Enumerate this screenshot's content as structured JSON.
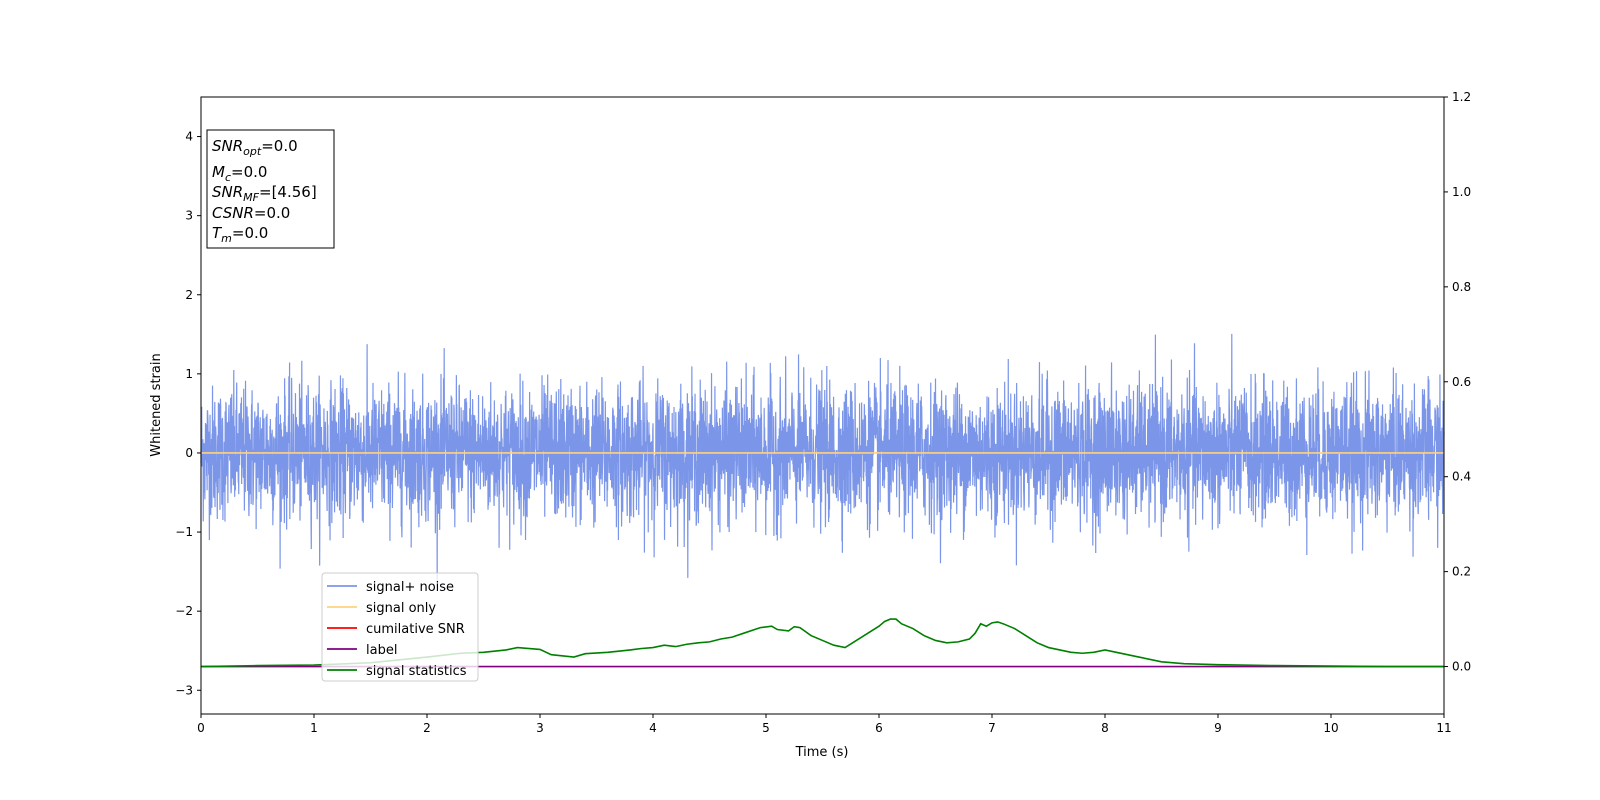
{
  "chart_data": {
    "type": "line",
    "title": "",
    "xlabel": "Time (s)",
    "ylabel": "Whitened strain",
    "y2label": "",
    "xlim": [
      0,
      11
    ],
    "ylim": [
      -3.3,
      4.5
    ],
    "y2lim": [
      -0.1,
      1.2
    ],
    "xticks": [
      "0",
      "1",
      "2",
      "3",
      "4",
      "5",
      "6",
      "7",
      "8",
      "9",
      "10",
      "11"
    ],
    "yticks": [
      "−3",
      "−2",
      "−1",
      "0",
      "1",
      "2",
      "3",
      "4"
    ],
    "y2ticks": [
      "0.0",
      "0.2",
      "0.4",
      "0.6",
      "0.8",
      "1.0",
      "1.2"
    ],
    "grid": false,
    "legend_position": "lower-left",
    "annotation": {
      "lines": [
        {
          "sym": "SNR",
          "sub": "opt",
          "val": "=0.0"
        },
        {
          "sym": "M",
          "sub": "c",
          "val": "=0.0"
        },
        {
          "sym": "SNR",
          "sub": "MF",
          "val": "=[4.56]"
        },
        {
          "sym": "CSNR",
          "sub": "",
          "val": "=0.0"
        },
        {
          "sym": "T",
          "sub": "m",
          "val": "=0.0"
        }
      ]
    },
    "series": [
      {
        "name": "signal+ noise",
        "color": "#7b96e8",
        "axis": "left",
        "kind": "noise",
        "amplitude_envelope": [
          -1.85,
          1.85
        ],
        "description_values": {
          "mean": 0.0,
          "std": 0.42
        }
      },
      {
        "name": "signal only",
        "color": "#ffd27f",
        "axis": "left",
        "x": [
          0,
          11
        ],
        "y": [
          0,
          0
        ]
      },
      {
        "name": "cumilative SNR",
        "color": "#ff0000",
        "axis": "right",
        "x": [],
        "y": []
      },
      {
        "name": "label",
        "color": "#800080",
        "axis": "right",
        "x": [
          0,
          11
        ],
        "y": [
          0,
          0
        ]
      },
      {
        "name": "signal statistics",
        "color": "#008000",
        "axis": "right",
        "x": [
          0,
          0.5,
          1.0,
          1.5,
          2.0,
          2.3,
          2.5,
          2.7,
          2.8,
          3.0,
          3.1,
          3.3,
          3.4,
          3.6,
          3.8,
          3.9,
          4.0,
          4.1,
          4.2,
          4.3,
          4.4,
          4.5,
          4.6,
          4.7,
          4.8,
          4.9,
          4.95,
          5.05,
          5.1,
          5.2,
          5.25,
          5.3,
          5.4,
          5.5,
          5.6,
          5.7,
          5.8,
          5.9,
          6.0,
          6.05,
          6.1,
          6.15,
          6.2,
          6.3,
          6.4,
          6.5,
          6.6,
          6.7,
          6.8,
          6.85,
          6.9,
          6.95,
          7.0,
          7.05,
          7.1,
          7.2,
          7.3,
          7.4,
          7.5,
          7.6,
          7.7,
          7.8,
          7.9,
          8.0,
          8.1,
          8.2,
          8.3,
          8.5,
          8.7,
          9.0,
          9.5,
          10.0,
          10.5,
          11.0
        ],
        "y": [
          0.0,
          0.002,
          0.003,
          0.008,
          0.02,
          0.028,
          0.03,
          0.035,
          0.04,
          0.036,
          0.025,
          0.02,
          0.027,
          0.03,
          0.035,
          0.038,
          0.04,
          0.045,
          0.042,
          0.047,
          0.05,
          0.052,
          0.058,
          0.062,
          0.07,
          0.078,
          0.082,
          0.085,
          0.078,
          0.075,
          0.084,
          0.082,
          0.065,
          0.055,
          0.045,
          0.04,
          0.055,
          0.07,
          0.085,
          0.095,
          0.1,
          0.1,
          0.09,
          0.08,
          0.065,
          0.055,
          0.05,
          0.052,
          0.058,
          0.07,
          0.09,
          0.085,
          0.092,
          0.094,
          0.09,
          0.08,
          0.065,
          0.05,
          0.04,
          0.035,
          0.03,
          0.028,
          0.03,
          0.035,
          0.03,
          0.025,
          0.02,
          0.01,
          0.006,
          0.004,
          0.002,
          0.001,
          0.0,
          0.0
        ]
      }
    ]
  },
  "colors": {
    "noise": "#7b96e8",
    "signal_only": "#ffd27f",
    "cumulative_snr": "#ff0000",
    "label": "#800080",
    "signal_statistics": "#008000"
  }
}
